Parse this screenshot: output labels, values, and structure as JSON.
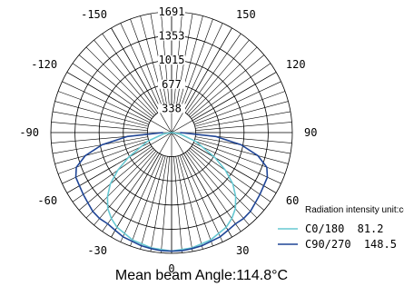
{
  "chart_data": {
    "type": "polar",
    "angle_ticks": [
      {
        "angle": -150,
        "label": "-150"
      },
      {
        "angle": 150,
        "label": "150"
      },
      {
        "angle": -120,
        "label": "-120"
      },
      {
        "angle": 120,
        "label": "120"
      },
      {
        "angle": -90,
        "label": "-90"
      },
      {
        "angle": 90,
        "label": "90"
      },
      {
        "angle": -60,
        "label": "-60"
      },
      {
        "angle": 60,
        "label": "60"
      },
      {
        "angle": -30,
        "label": "-30"
      },
      {
        "angle": 30,
        "label": "30"
      },
      {
        "angle": 0,
        "label": "0"
      }
    ],
    "radial_ticks": [
      338,
      677,
      1015,
      1353,
      1691
    ],
    "radial_max": 1691,
    "legend_title": "Radiation intensity unit:cd",
    "series": [
      {
        "name": "C0/180",
        "beam_angle": "81.2",
        "color": "#66c8d2",
        "points": [
          [
            -90,
            0
          ],
          [
            -80,
            120
          ],
          [
            -70,
            360
          ],
          [
            -60,
            700
          ],
          [
            -55,
            920
          ],
          [
            -50,
            1120
          ],
          [
            -45,
            1270
          ],
          [
            -40,
            1390
          ],
          [
            -35,
            1470
          ],
          [
            -30,
            1530
          ],
          [
            -20,
            1600
          ],
          [
            -10,
            1640
          ],
          [
            0,
            1660
          ],
          [
            10,
            1640
          ],
          [
            20,
            1600
          ],
          [
            30,
            1530
          ],
          [
            35,
            1470
          ],
          [
            40,
            1390
          ],
          [
            45,
            1270
          ],
          [
            50,
            1120
          ],
          [
            55,
            920
          ],
          [
            60,
            700
          ],
          [
            70,
            360
          ],
          [
            80,
            120
          ],
          [
            90,
            0
          ]
        ]
      },
      {
        "name": "C90/270",
        "beam_angle": "148.5",
        "color": "#1f4596",
        "points": [
          [
            -90,
            120
          ],
          [
            -85,
            620
          ],
          [
            -80,
            990
          ],
          [
            -75,
            1250
          ],
          [
            -70,
            1420
          ],
          [
            -65,
            1480
          ],
          [
            -60,
            1490
          ],
          [
            -55,
            1510
          ],
          [
            -50,
            1530
          ],
          [
            -45,
            1560
          ],
          [
            -40,
            1570
          ],
          [
            -35,
            1560
          ],
          [
            -30,
            1580
          ],
          [
            -25,
            1610
          ],
          [
            -20,
            1620
          ],
          [
            -15,
            1640
          ],
          [
            -10,
            1650
          ],
          [
            -5,
            1660
          ],
          [
            0,
            1660
          ],
          [
            5,
            1660
          ],
          [
            10,
            1650
          ],
          [
            15,
            1640
          ],
          [
            20,
            1620
          ],
          [
            25,
            1610
          ],
          [
            30,
            1580
          ],
          [
            35,
            1560
          ],
          [
            40,
            1570
          ],
          [
            45,
            1560
          ],
          [
            50,
            1530
          ],
          [
            55,
            1510
          ],
          [
            60,
            1490
          ],
          [
            65,
            1480
          ],
          [
            70,
            1420
          ],
          [
            75,
            1250
          ],
          [
            80,
            990
          ],
          [
            85,
            620
          ],
          [
            90,
            120
          ]
        ]
      }
    ]
  },
  "caption": {
    "label": "Mean beam Angle:",
    "value": "114.8",
    "unit": "°C"
  }
}
